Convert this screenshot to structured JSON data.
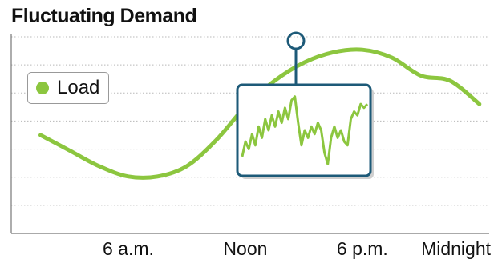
{
  "chart_data": {
    "type": "line",
    "title": "Fluctuating Demand",
    "xlabel": "",
    "ylabel": "",
    "x_ticks": [
      "6 a.m.",
      "Noon",
      "6 p.m.",
      "Midnight"
    ],
    "legend": {
      "position": "top-left",
      "entries": [
        "Load"
      ]
    },
    "grid": true,
    "series": [
      {
        "name": "Load",
        "color": "#8cc63f",
        "x": [
          1.5,
          3,
          4.5,
          6,
          7.5,
          9,
          10.5,
          12,
          13.5,
          15,
          16.5,
          18,
          19.5,
          21,
          22.5,
          24
        ],
        "y": [
          3.8,
          3.2,
          2.6,
          2.2,
          2.2,
          2.6,
          3.6,
          4.9,
          5.9,
          6.6,
          7.0,
          7.1,
          6.8,
          6.1,
          5.9,
          5.0
        ]
      }
    ],
    "inset": {
      "description_type": "detail",
      "color": "#8cc63f",
      "frame_color": "#1d5a78",
      "values": [
        0.15,
        0.35,
        0.25,
        0.45,
        0.3,
        0.55,
        0.4,
        0.65,
        0.5,
        0.7,
        0.55,
        0.75,
        0.6,
        0.8,
        0.65,
        0.9,
        0.95,
        0.6,
        0.3,
        0.5,
        0.4,
        0.55,
        0.45,
        0.6,
        0.5,
        0.2,
        0.05,
        0.4,
        0.55,
        0.4,
        0.5,
        0.35,
        0.3,
        0.65,
        0.75,
        0.7,
        0.85,
        0.8,
        0.85
      ]
    },
    "xlim": [
      0,
      24.5
    ],
    "ylim": [
      0,
      7.6
    ]
  },
  "legend_label": "Load",
  "title": "Fluctuating Demand"
}
